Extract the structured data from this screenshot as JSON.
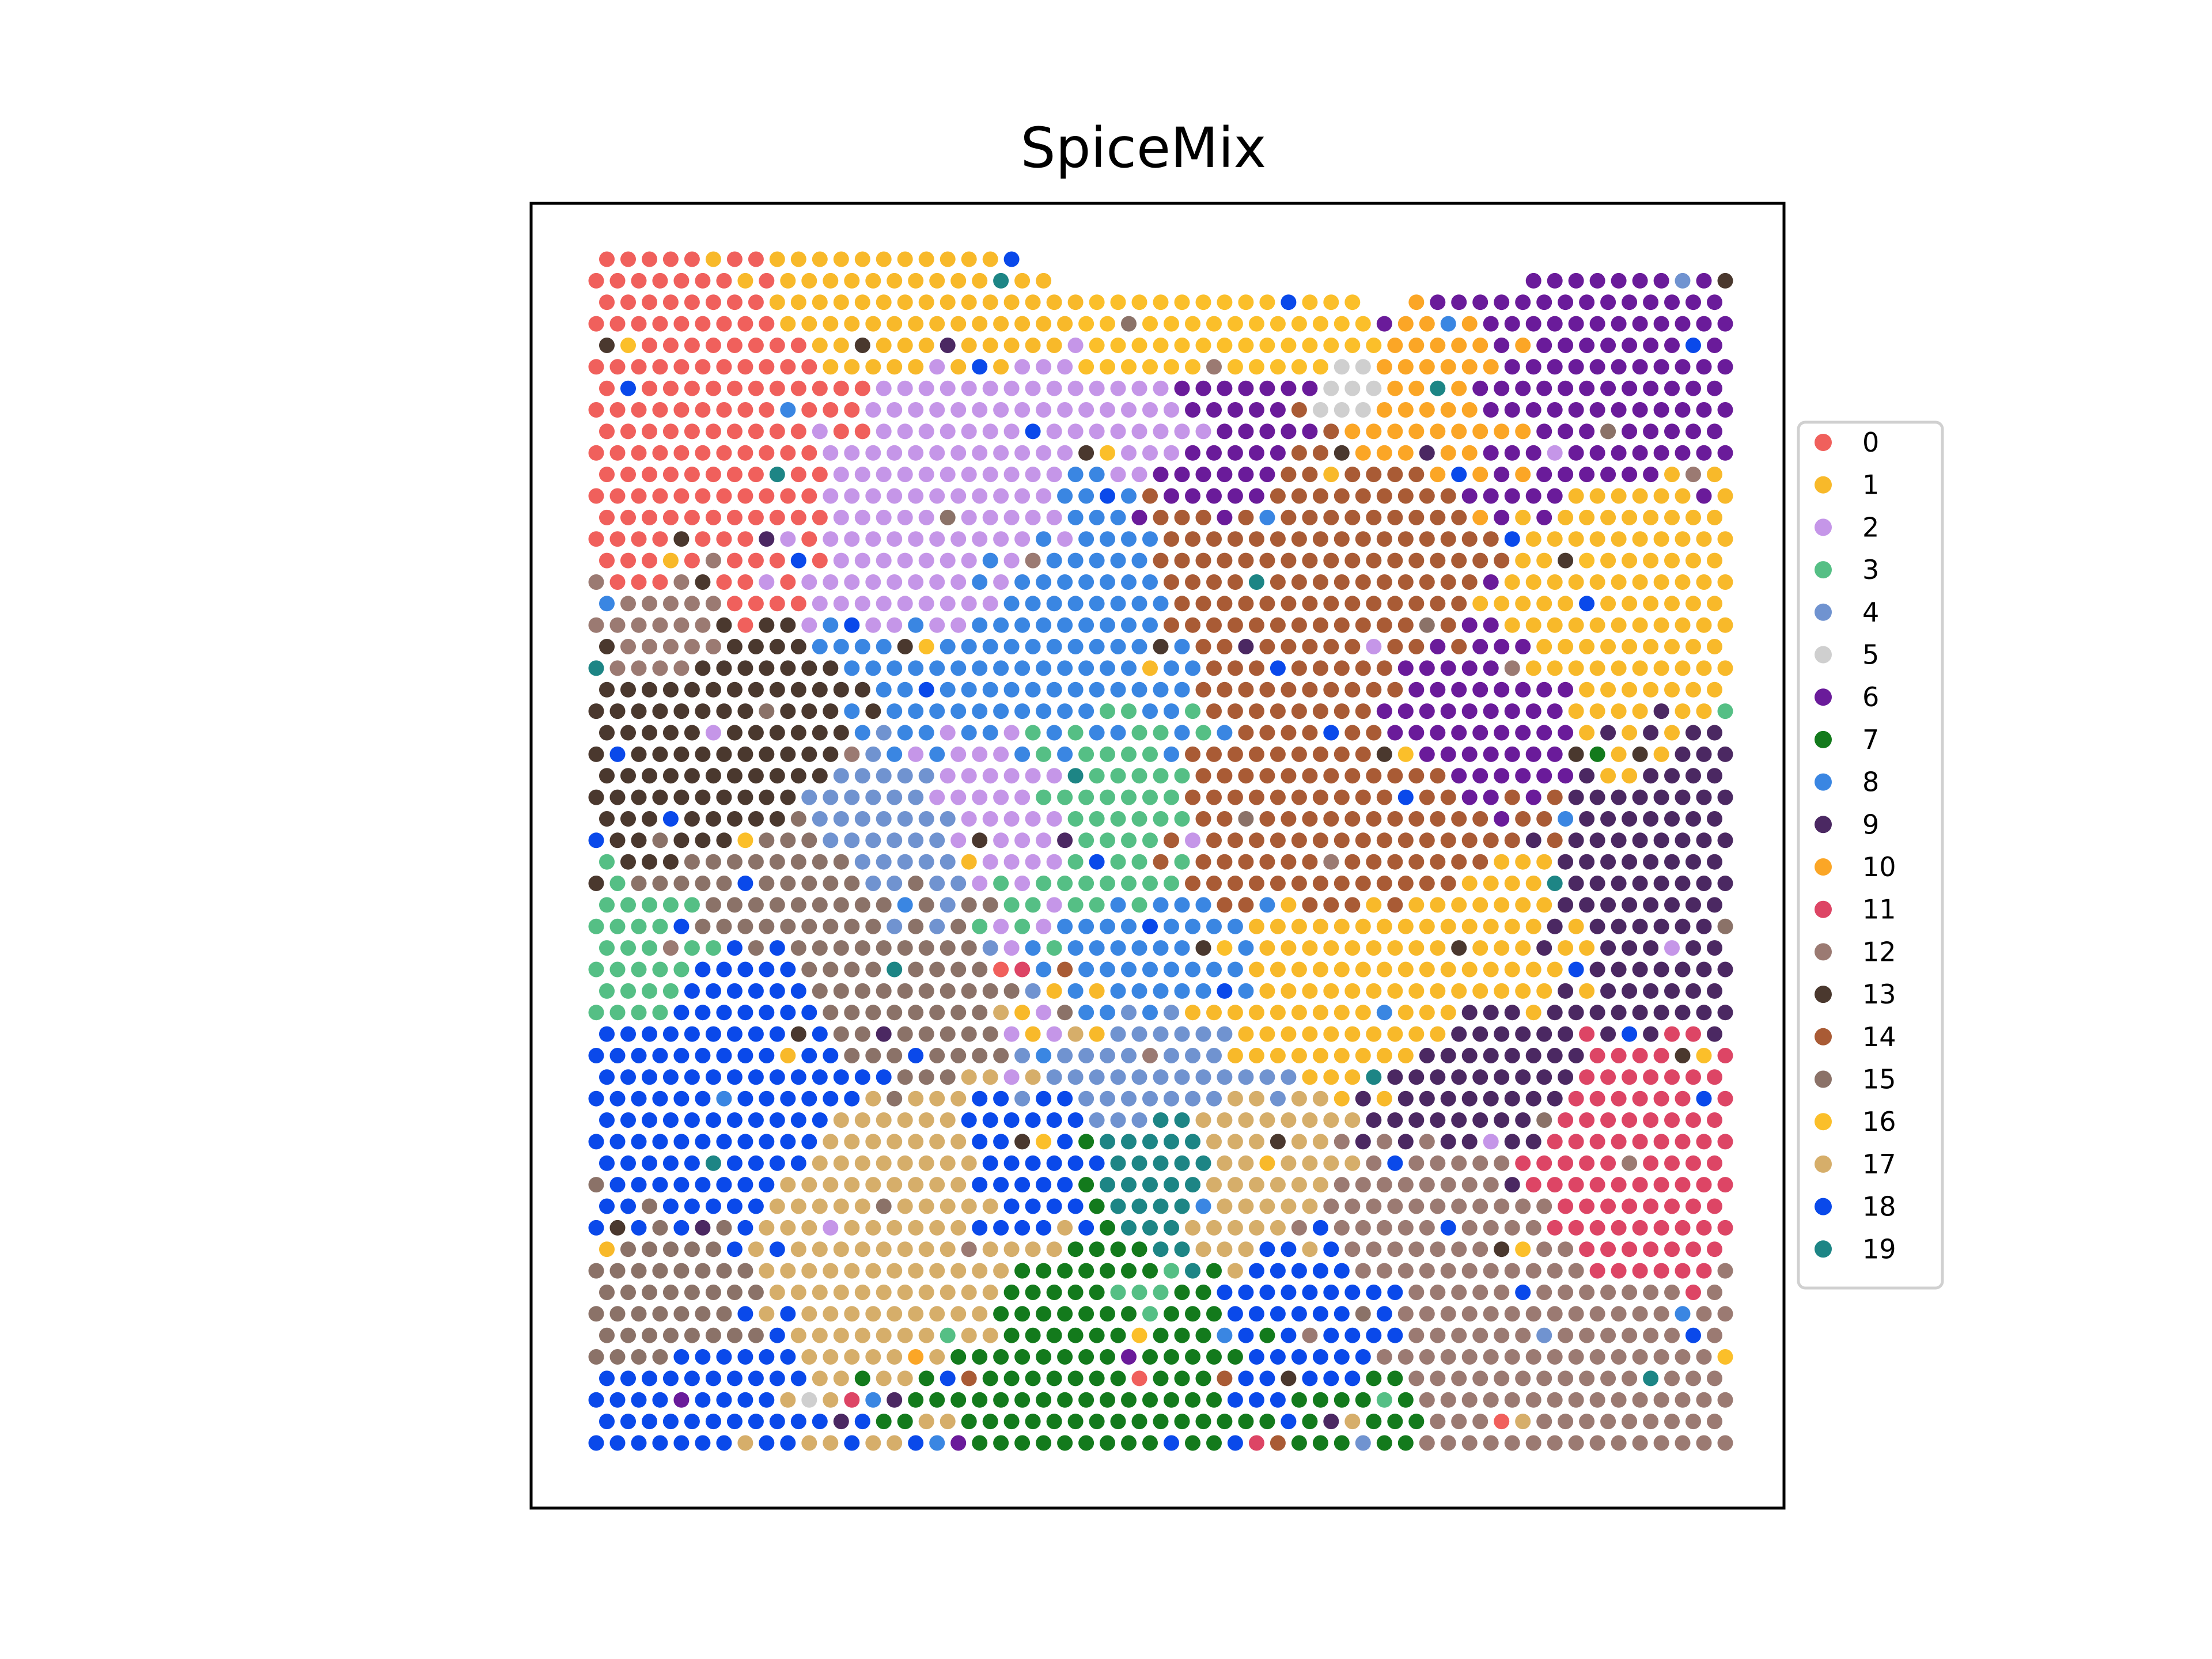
{
  "chart_data": {
    "type": "scatter",
    "title": "SpiceMix",
    "xlabel": "",
    "ylabel": "",
    "axes_visible": false,
    "grid": false,
    "legend_position": "right",
    "grid_size": [
      54,
      56
    ],
    "categories": [
      "0",
      "1",
      "2",
      "3",
      "4",
      "5",
      "6",
      "7",
      "8",
      "9",
      "10",
      "11",
      "12",
      "13",
      "14",
      "15",
      "16",
      "17",
      "18",
      "19"
    ],
    "colors": [
      "#f0605c",
      "#f8b92a",
      "#c596e8",
      "#55bf85",
      "#7093d0",
      "#cfcfcf",
      "#6a1b9a",
      "#137a1c",
      "#3a86e2",
      "#4b2862",
      "#fba626",
      "#dd4565",
      "#9b7a72",
      "#4a382e",
      "#a95b35",
      "#8b7268",
      "#fbbf2a",
      "#d6ae6a",
      "#0a49ea",
      "#1d8585"
    ],
    "regions": [
      {
        "category": 0,
        "x": 5,
        "y": 48,
        "rx": 6,
        "ry": 7
      },
      {
        "category": 1,
        "x": 14,
        "y": 53,
        "rx": 8,
        "ry": 3
      },
      {
        "category": 16,
        "x": 29,
        "y": 52,
        "rx": 6,
        "ry": 3
      },
      {
        "category": 2,
        "x": 17,
        "y": 43,
        "rx": 6,
        "ry": 7
      },
      {
        "category": 2,
        "x": 19,
        "y": 30,
        "rx": 4,
        "ry": 4
      },
      {
        "category": 8,
        "x": 21,
        "y": 37,
        "rx": 8,
        "ry": 8
      },
      {
        "category": 8,
        "x": 28,
        "y": 22,
        "rx": 5,
        "ry": 3
      },
      {
        "category": 3,
        "x": 23,
        "y": 31,
        "rx": 5,
        "ry": 5
      },
      {
        "category": 4,
        "x": 13,
        "y": 28,
        "rx": 4,
        "ry": 4
      },
      {
        "category": 6,
        "x": 29,
        "y": 46,
        "rx": 4,
        "ry": 4
      },
      {
        "category": 6,
        "x": 46,
        "y": 48,
        "rx": 8,
        "ry": 5
      },
      {
        "category": 6,
        "x": 41,
        "y": 34,
        "rx": 4,
        "ry": 4
      },
      {
        "category": 14,
        "x": 33,
        "y": 40,
        "rx": 8,
        "ry": 6
      },
      {
        "category": 14,
        "x": 34,
        "y": 29,
        "rx": 8,
        "ry": 5
      },
      {
        "category": 10,
        "x": 40,
        "y": 48,
        "rx": 5,
        "ry": 4
      },
      {
        "category": 1,
        "x": 48,
        "y": 40,
        "rx": 5,
        "ry": 6
      },
      {
        "category": 1,
        "x": 34,
        "y": 21,
        "rx": 8,
        "ry": 4
      },
      {
        "category": 1,
        "x": 42,
        "y": 24,
        "rx": 4,
        "ry": 3
      },
      {
        "category": 13,
        "x": 5,
        "y": 33,
        "rx": 6,
        "ry": 5
      },
      {
        "category": 12,
        "x": 3,
        "y": 37,
        "rx": 3,
        "ry": 3
      },
      {
        "category": 15,
        "x": 10,
        "y": 26,
        "rx": 6,
        "ry": 3
      },
      {
        "category": 18,
        "x": 6,
        "y": 17,
        "rx": 6,
        "ry": 7
      },
      {
        "category": 3,
        "x": 2,
        "y": 22,
        "rx": 3,
        "ry": 3
      },
      {
        "category": 17,
        "x": 14,
        "y": 10,
        "rx": 6,
        "ry": 6
      },
      {
        "category": 15,
        "x": 3,
        "y": 6,
        "rx": 4,
        "ry": 4
      },
      {
        "category": 18,
        "x": 4,
        "y": 3,
        "rx": 4,
        "ry": 3
      },
      {
        "category": 15,
        "x": 14,
        "y": 20,
        "rx": 4,
        "ry": 3
      },
      {
        "category": 7,
        "x": 24,
        "y": 5,
        "rx": 6,
        "ry": 5
      },
      {
        "category": 3,
        "x": 25,
        "y": 6,
        "rx": 3,
        "ry": 3
      },
      {
        "category": 19,
        "x": 27,
        "y": 12,
        "rx": 3,
        "ry": 3
      },
      {
        "category": 18,
        "x": 33,
        "y": 6,
        "rx": 4,
        "ry": 4
      },
      {
        "category": 18,
        "x": 19,
        "y": 12,
        "rx": 3,
        "ry": 3
      },
      {
        "category": 7,
        "x": 36,
        "y": 1,
        "rx": 3,
        "ry": 2
      },
      {
        "category": 9,
        "x": 41,
        "y": 17,
        "rx": 4,
        "ry": 4
      },
      {
        "category": 9,
        "x": 50,
        "y": 25,
        "rx": 5,
        "ry": 6
      },
      {
        "category": 11,
        "x": 50,
        "y": 13,
        "rx": 5,
        "ry": 6
      },
      {
        "category": 12,
        "x": 47,
        "y": 4,
        "rx": 9,
        "ry": 5
      },
      {
        "category": 12,
        "x": 38,
        "y": 10,
        "rx": 4,
        "ry": 4
      },
      {
        "category": 17,
        "x": 30,
        "y": 12,
        "rx": 4,
        "ry": 4
      },
      {
        "category": 1,
        "x": 30,
        "y": 20,
        "rx": 3,
        "ry": 2
      },
      {
        "category": 2,
        "x": 26,
        "y": 47,
        "rx": 4,
        "ry": 3
      },
      {
        "category": 4,
        "x": 27,
        "y": 18,
        "rx": 4,
        "ry": 3
      },
      {
        "category": 5,
        "x": 36,
        "y": 49,
        "rx": 2,
        "ry": 2
      },
      {
        "category": 0,
        "x": 2,
        "y": 42,
        "rx": 2,
        "ry": 2
      }
    ]
  },
  "legend": {
    "entries": [
      {
        "label": "0",
        "color": "#f0605c"
      },
      {
        "label": "1",
        "color": "#f8b92a"
      },
      {
        "label": "2",
        "color": "#c596e8"
      },
      {
        "label": "3",
        "color": "#55bf85"
      },
      {
        "label": "4",
        "color": "#7093d0"
      },
      {
        "label": "5",
        "color": "#cfcfcf"
      },
      {
        "label": "6",
        "color": "#6a1b9a"
      },
      {
        "label": "7",
        "color": "#137a1c"
      },
      {
        "label": "8",
        "color": "#3a86e2"
      },
      {
        "label": "9",
        "color": "#4b2862"
      },
      {
        "label": "10",
        "color": "#fba626"
      },
      {
        "label": "11",
        "color": "#dd4565"
      },
      {
        "label": "12",
        "color": "#9b7a72"
      },
      {
        "label": "13",
        "color": "#4a382e"
      },
      {
        "label": "14",
        "color": "#a95b35"
      },
      {
        "label": "15",
        "color": "#8b7268"
      },
      {
        "label": "16",
        "color": "#fbbf2a"
      },
      {
        "label": "17",
        "color": "#d6ae6a"
      },
      {
        "label": "18",
        "color": "#0a49ea"
      },
      {
        "label": "19",
        "color": "#1d8585"
      }
    ]
  }
}
